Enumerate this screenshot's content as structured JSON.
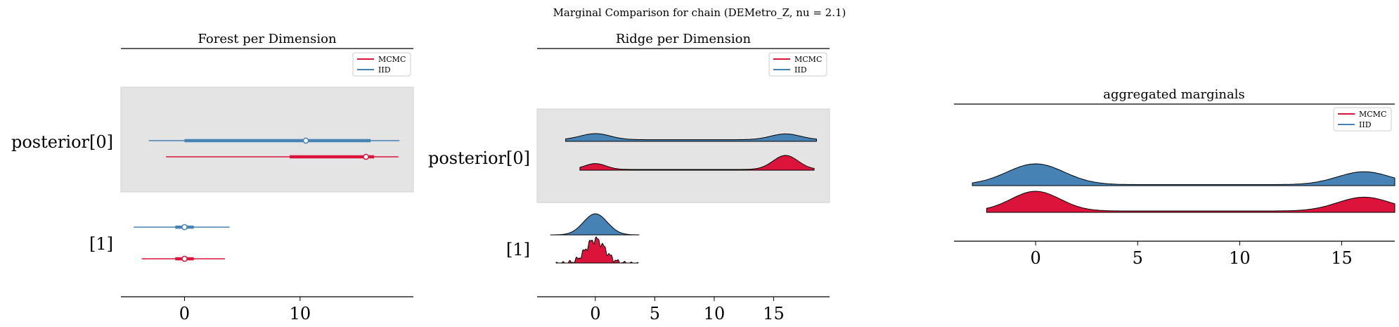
{
  "suptitle": "Marginal Comparison for chain (DEMetro_Z, nu = 2.1)",
  "colors": {
    "mcmc": "#dc143c",
    "iid": "#4682b4",
    "band": "#e4e4e4",
    "outline": "#000000"
  },
  "legend": [
    {
      "label": "MCMC",
      "color": "#dc143c"
    },
    {
      "label": "IID",
      "color": "#4682b4"
    }
  ],
  "chart_data": [
    {
      "type": "forest",
      "title": "Forest per Dimension",
      "xlim": [
        -5.5,
        19.8
      ],
      "xticks": [
        0,
        10
      ],
      "legend_position": "top-right",
      "rows": [
        {
          "label": "posterior[0]",
          "shaded": true,
          "series": [
            {
              "name": "IID",
              "hdi94": [
                -3.1,
                18.6
              ],
              "hdi50": [
                0.0,
                16.1
              ],
              "median": 10.5
            },
            {
              "name": "MCMC",
              "hdi94": [
                -1.6,
                18.5
              ],
              "hdi50": [
                9.1,
                16.4
              ],
              "median": 15.7
            }
          ]
        },
        {
          "label": "[1]",
          "shaded": false,
          "series": [
            {
              "name": "IID",
              "hdi94": [
                -4.4,
                3.9
              ],
              "hdi50": [
                -0.8,
                0.8
              ],
              "median": 0.0
            },
            {
              "name": "MCMC",
              "hdi94": [
                -3.7,
                3.5
              ],
              "hdi50": [
                -0.8,
                0.8
              ],
              "median": 0.0
            }
          ]
        }
      ]
    },
    {
      "type": "ridge",
      "title": "Ridge per Dimension",
      "xlim": [
        -4.9,
        19.7
      ],
      "xticks": [
        0,
        5,
        10,
        15
      ],
      "legend_position": "top-right",
      "rows": [
        {
          "label": "posterior[0]",
          "shaded": true,
          "series": [
            {
              "name": "IID",
              "range": [
                -2.5,
                18.6
              ],
              "peaks": [
                [
                  0,
                  1.0,
                  1.25
                ],
                [
                  16,
                  0.95,
                  1.25
                ]
              ],
              "floor": 0.28
            },
            {
              "name": "MCMC",
              "range": [
                -1.3,
                18.4
              ],
              "peaks": [
                [
                  0,
                  0.42,
                  0.9
                ],
                [
                  16,
                  1.0,
                  1.05
                ]
              ],
              "floor": 0.05
            }
          ]
        },
        {
          "label": "[1]",
          "shaded": false,
          "series": [
            {
              "name": "IID",
              "range": [
                -3.8,
                3.7
              ],
              "peaks": [
                [
                  0,
                  1.0,
                  1.0
                ]
              ],
              "floor": 0.0
            },
            {
              "name": "MCMC",
              "range": [
                -3.3,
                3.6
              ],
              "peaks": [
                [
                  0,
                  1.0,
                  0.8
                ]
              ],
              "floor": 0.0,
              "jitter": true
            }
          ]
        }
      ]
    },
    {
      "type": "ridge",
      "title": "aggregated marginals",
      "xlim": [
        -4.0,
        17.6
      ],
      "xticks": [
        0,
        5,
        10,
        15
      ],
      "legend_position": "top-right",
      "rows": [
        {
          "label": "",
          "shaded": false,
          "series": [
            {
              "name": "IID",
              "range": [
                -3.1,
                17.6
              ],
              "peaks": [
                [
                  0,
                  1.0,
                  1.4
                ],
                [
                  16.1,
                  0.62,
                  1.3
                ]
              ],
              "floor": 0.05
            },
            {
              "name": "MCMC",
              "range": [
                -2.4,
                17.6
              ],
              "peaks": [
                [
                  0,
                  1.0,
                  1.2
                ],
                [
                  16.1,
                  0.7,
                  1.3
                ]
              ],
              "floor": 0.07
            }
          ]
        }
      ]
    }
  ]
}
